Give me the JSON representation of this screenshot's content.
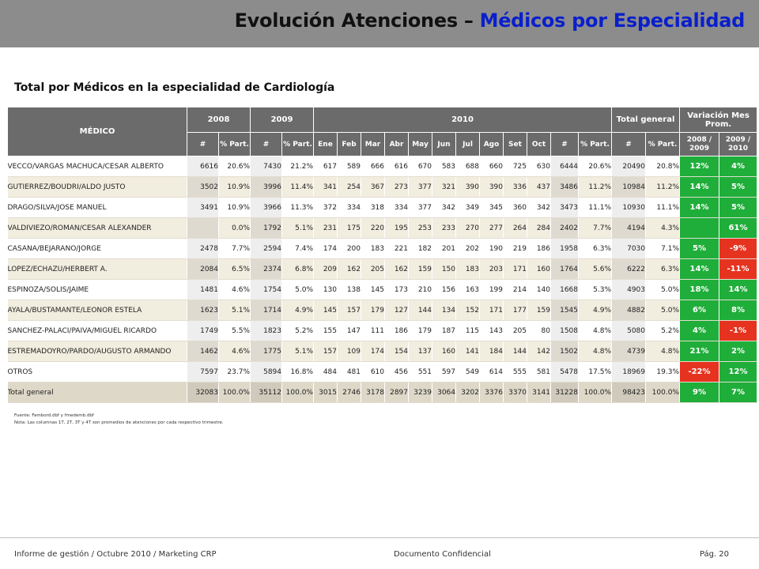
{
  "header": {
    "title_part1": "Evolución Atenciones – ",
    "title_part2": "Médicos por Especialidad"
  },
  "subtitle": "Total por Médicos en la especialidad de Cardiología",
  "table": {
    "header_medico": "MÉDICO",
    "year_2008": "2008",
    "year_2009": "2009",
    "year_2010": "2010",
    "total_general": "Total general",
    "variacion_line1": "Variación Mes",
    "variacion_line2": "Prom.",
    "sub_hash": "#",
    "sub_part": "% Part.",
    "months": [
      "Ene",
      "Feb",
      "Mar",
      "Abr",
      "May",
      "Jun",
      "Jul",
      "Ago",
      "Set",
      "Oct"
    ],
    "var_2008_2009_l1": "2008 /",
    "var_2008_2009_l2": "2009",
    "var_2009_2010_l1": "2009 /",
    "var_2009_2010_l2": "2010",
    "rows": [
      {
        "name": "VECCO/VARGAS MACHUCA/CESAR ALBERTO",
        "y2008": "6616",
        "p2008": "20.6%",
        "y2009": "7430",
        "p2009": "21.2%",
        "months": [
          "617",
          "589",
          "666",
          "616",
          "670",
          "583",
          "688",
          "660",
          "725",
          "630"
        ],
        "y2010": "6444",
        "p2010": "20.6%",
        "tot": "20490",
        "ptot": "20.8%",
        "v1": "12%",
        "v1c": "g",
        "v2": "4%",
        "v2c": "g"
      },
      {
        "name": "GUTIERREZ/BOUDRI/ALDO JUSTO",
        "y2008": "3502",
        "p2008": "10.9%",
        "y2009": "3996",
        "p2009": "11.4%",
        "months": [
          "341",
          "254",
          "367",
          "273",
          "377",
          "321",
          "390",
          "390",
          "336",
          "437"
        ],
        "y2010": "3486",
        "p2010": "11.2%",
        "tot": "10984",
        "ptot": "11.2%",
        "v1": "14%",
        "v1c": "g",
        "v2": "5%",
        "v2c": "g"
      },
      {
        "name": "DRAGO/SILVA/JOSE MANUEL",
        "y2008": "3491",
        "p2008": "10.9%",
        "y2009": "3966",
        "p2009": "11.3%",
        "months": [
          "372",
          "334",
          "318",
          "334",
          "377",
          "342",
          "349",
          "345",
          "360",
          "342"
        ],
        "y2010": "3473",
        "p2010": "11.1%",
        "tot": "10930",
        "ptot": "11.1%",
        "v1": "14%",
        "v1c": "g",
        "v2": "5%",
        "v2c": "g"
      },
      {
        "name": "VALDIVIEZO/ROMAN/CESAR ALEXANDER",
        "y2008": "",
        "p2008": "0.0%",
        "y2009": "1792",
        "p2009": "5.1%",
        "months": [
          "231",
          "175",
          "220",
          "195",
          "253",
          "233",
          "270",
          "277",
          "264",
          "284"
        ],
        "y2010": "2402",
        "p2010": "7.7%",
        "tot": "4194",
        "ptot": "4.3%",
        "v1": "",
        "v1c": "g",
        "v2": "61%",
        "v2c": "g"
      },
      {
        "name": "CASANA/BEJARANO/JORGE",
        "y2008": "2478",
        "p2008": "7.7%",
        "y2009": "2594",
        "p2009": "7.4%",
        "months": [
          "174",
          "200",
          "183",
          "221",
          "182",
          "201",
          "202",
          "190",
          "219",
          "186"
        ],
        "y2010": "1958",
        "p2010": "6.3%",
        "tot": "7030",
        "ptot": "7.1%",
        "v1": "5%",
        "v1c": "g",
        "v2": "-9%",
        "v2c": "r"
      },
      {
        "name": "LOPEZ/ECHAZU/HERBERT A.",
        "y2008": "2084",
        "p2008": "6.5%",
        "y2009": "2374",
        "p2009": "6.8%",
        "months": [
          "209",
          "162",
          "205",
          "162",
          "159",
          "150",
          "183",
          "203",
          "171",
          "160"
        ],
        "y2010": "1764",
        "p2010": "5.6%",
        "tot": "6222",
        "ptot": "6.3%",
        "v1": "14%",
        "v1c": "g",
        "v2": "-11%",
        "v2c": "r"
      },
      {
        "name": "ESPINOZA/SOLIS/JAIME",
        "y2008": "1481",
        "p2008": "4.6%",
        "y2009": "1754",
        "p2009": "5.0%",
        "months": [
          "130",
          "138",
          "145",
          "173",
          "210",
          "156",
          "163",
          "199",
          "214",
          "140"
        ],
        "y2010": "1668",
        "p2010": "5.3%",
        "tot": "4903",
        "ptot": "5.0%",
        "v1": "18%",
        "v1c": "g",
        "v2": "14%",
        "v2c": "g"
      },
      {
        "name": "AYALA/BUSTAMANTE/LEONOR ESTELA",
        "y2008": "1623",
        "p2008": "5.1%",
        "y2009": "1714",
        "p2009": "4.9%",
        "months": [
          "145",
          "157",
          "179",
          "127",
          "144",
          "134",
          "152",
          "171",
          "177",
          "159"
        ],
        "y2010": "1545",
        "p2010": "4.9%",
        "tot": "4882",
        "ptot": "5.0%",
        "v1": "6%",
        "v1c": "g",
        "v2": "8%",
        "v2c": "g"
      },
      {
        "name": "SANCHEZ-PALACI/PAIVA/MIGUEL RICARDO",
        "y2008": "1749",
        "p2008": "5.5%",
        "y2009": "1823",
        "p2009": "5.2%",
        "months": [
          "155",
          "147",
          "111",
          "186",
          "179",
          "187",
          "115",
          "143",
          "205",
          "80"
        ],
        "y2010": "1508",
        "p2010": "4.8%",
        "tot": "5080",
        "ptot": "5.2%",
        "v1": "4%",
        "v1c": "g",
        "v2": "-1%",
        "v2c": "r"
      },
      {
        "name": "ESTREMADOYRO/PARDO/AUGUSTO ARMANDO",
        "y2008": "1462",
        "p2008": "4.6%",
        "y2009": "1775",
        "p2009": "5.1%",
        "months": [
          "157",
          "109",
          "174",
          "154",
          "137",
          "160",
          "141",
          "184",
          "144",
          "142"
        ],
        "y2010": "1502",
        "p2010": "4.8%",
        "tot": "4739",
        "ptot": "4.8%",
        "v1": "21%",
        "v1c": "g",
        "v2": "2%",
        "v2c": "g"
      },
      {
        "name": "OTROS",
        "y2008": "7597",
        "p2008": "23.7%",
        "y2009": "5894",
        "p2009": "16.8%",
        "months": [
          "484",
          "481",
          "610",
          "456",
          "551",
          "597",
          "549",
          "614",
          "555",
          "581"
        ],
        "y2010": "5478",
        "p2010": "17.5%",
        "tot": "18969",
        "ptot": "19.3%",
        "v1": "-22%",
        "v1c": "r",
        "v2": "12%",
        "v2c": "g"
      },
      {
        "name": "Total general",
        "y2008": "32083",
        "p2008": "100.0%",
        "y2009": "35112",
        "p2009": "100.0%",
        "months": [
          "3015",
          "2746",
          "3178",
          "2897",
          "3239",
          "3064",
          "3202",
          "3376",
          "3370",
          "3141"
        ],
        "y2010": "31228",
        "p2010": "100.0%",
        "tot": "98423",
        "ptot": "100.0%",
        "v1": "9%",
        "v1c": "g",
        "v2": "7%",
        "v2c": "g"
      }
    ]
  },
  "notes": {
    "source": "Fuente: Fambord.dbf   y fmedemb.dbf",
    "note": "Nota: Las columnas 1T, 2T, 3T y 4T  son promedios de atenciones por cada respectivo trimestre."
  },
  "footer": {
    "left": "Informe de gestión / Octubre 2010 / Marketing CRP",
    "center": "Documento Confidencial",
    "right": "Pág. 20"
  },
  "colors": {
    "header_bg": "#6b6b6b",
    "positive": "#1fae3a",
    "negative": "#e6331f",
    "title_accent": "#0a1fcc"
  }
}
